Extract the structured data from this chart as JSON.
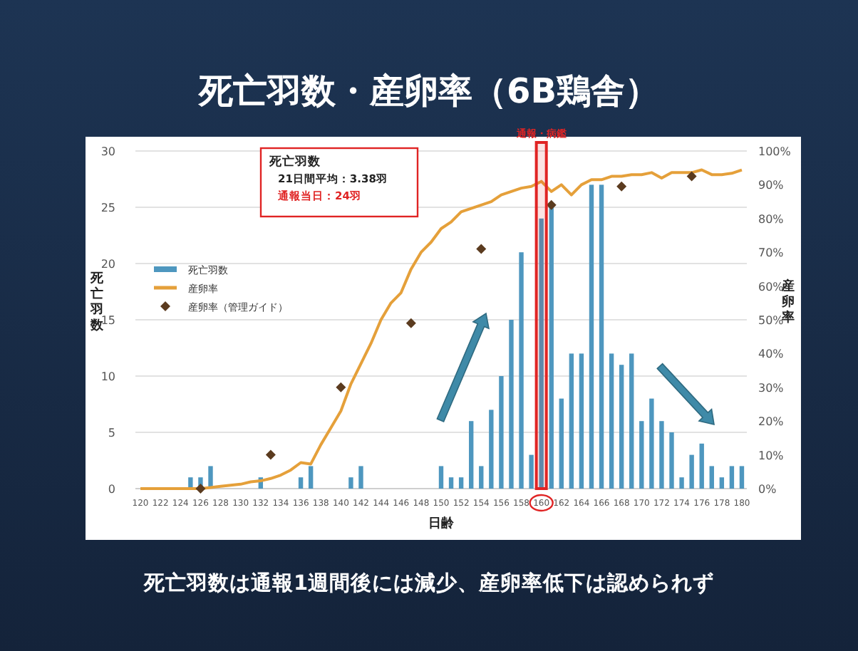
{
  "chart_data": {
    "type": "bar",
    "title": "死亡羽数・産卵率（6B鶏舎）",
    "xlabel": "日齢",
    "ylabel": "死亡羽数",
    "y2label": "産卵率",
    "x": [
      120,
      121,
      122,
      123,
      124,
      125,
      126,
      127,
      128,
      129,
      130,
      131,
      132,
      133,
      134,
      135,
      136,
      137,
      138,
      139,
      140,
      141,
      142,
      143,
      144,
      145,
      146,
      147,
      148,
      149,
      150,
      151,
      152,
      153,
      154,
      155,
      156,
      157,
      158,
      159,
      160,
      161,
      162,
      163,
      164,
      165,
      166,
      167,
      168,
      169,
      170,
      171,
      172,
      173,
      174,
      175,
      176,
      177,
      178,
      179,
      180
    ],
    "xlim": [
      119.5,
      180.5
    ],
    "xticks": [
      120,
      122,
      124,
      126,
      128,
      130,
      132,
      134,
      136,
      138,
      140,
      142,
      144,
      146,
      148,
      150,
      152,
      154,
      156,
      158,
      160,
      162,
      164,
      166,
      168,
      170,
      172,
      174,
      176,
      178,
      180
    ],
    "ylim": [
      0,
      30
    ],
    "yticks": [
      0,
      5,
      10,
      15,
      20,
      25,
      30
    ],
    "y2lim": [
      0,
      100
    ],
    "y2ticks": [
      {
        "value": 0,
        "label": "0%"
      },
      {
        "value": 10,
        "label": "10%"
      },
      {
        "value": 20,
        "label": "20%"
      },
      {
        "value": 30,
        "label": "30%"
      },
      {
        "value": 40,
        "label": "40%"
      },
      {
        "value": 50,
        "label": "50%"
      },
      {
        "value": 60,
        "label": "60%"
      },
      {
        "value": 70,
        "label": "70%"
      },
      {
        "value": 80,
        "label": "80%"
      },
      {
        "value": 90,
        "label": "90%"
      },
      {
        "value": 100,
        "label": "100%"
      }
    ],
    "series": [
      {
        "name": "死亡羽数",
        "color": "#4e97bf",
        "values": [
          0,
          0,
          0,
          0,
          0,
          1,
          1,
          2,
          0,
          0,
          0,
          0,
          1,
          0,
          0,
          0,
          1,
          2,
          0,
          0,
          0,
          1,
          2,
          0,
          0,
          0,
          0,
          0,
          0,
          0,
          2,
          1,
          1,
          6,
          2,
          7,
          10,
          15,
          21,
          3,
          24,
          25,
          8,
          12,
          12,
          27,
          27,
          12,
          11,
          12,
          6,
          8,
          6,
          5,
          1,
          3,
          4,
          2,
          1,
          2,
          2
        ]
      },
      {
        "name": "産卵率",
        "type": "line",
        "axis": "y2",
        "color": "#e5a03a",
        "values": [
          0,
          0,
          0,
          0,
          0,
          0,
          0,
          0.3,
          0.7,
          1,
          1.3,
          2,
          2.3,
          3,
          4,
          5.5,
          7.7,
          7.3,
          13,
          18,
          23,
          31,
          37,
          43,
          50,
          55,
          58,
          65,
          70,
          73,
          77,
          79,
          82,
          83,
          84,
          85,
          87,
          88,
          89,
          89.5,
          91,
          88,
          90,
          87,
          90,
          91.5,
          91.5,
          92.5,
          92.5,
          93,
          93,
          93.6,
          92,
          93.6,
          93.6,
          93.6,
          94.4,
          93,
          93,
          93.4,
          94.4
        ]
      },
      {
        "name": "産卵率（管理ガイド）",
        "type": "scatter",
        "axis": "y2",
        "marker": "diamond",
        "color": "#5b3b1f",
        "x": [
          126,
          133,
          140,
          147,
          154,
          161,
          168,
          175
        ],
        "values": [
          0,
          10,
          30,
          49,
          71,
          84,
          89.5,
          92.5
        ]
      }
    ],
    "bands": [
      {
        "axis": "x",
        "from": 159.5,
        "to": 160.5,
        "label": "通報・病鑑",
        "color": "#e02424"
      }
    ],
    "annotations": [
      "死亡羽数",
      "21日間平均：3.38羽",
      "通報当日：24羽",
      "死亡羽数は通報1週間後には減少、産卵率低下は認められず"
    ],
    "grid": "y",
    "legend": "left"
  }
}
